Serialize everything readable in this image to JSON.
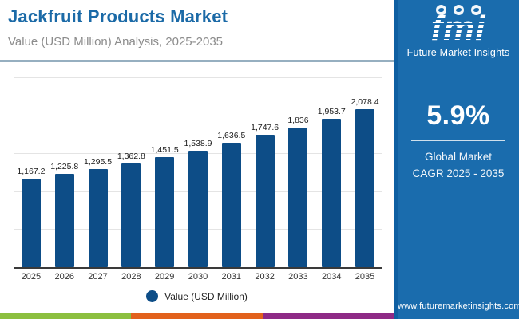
{
  "header": {
    "title": "Jackfruit Products Market",
    "subtitle": "Value (USD Million) Analysis, 2025-2035"
  },
  "chart_data": {
    "type": "bar",
    "title": "Jackfruit Products Market",
    "subtitle": "Value (USD Million) Analysis, 2025-2035",
    "categories": [
      "2025",
      "2026",
      "2027",
      "2028",
      "2029",
      "2030",
      "2031",
      "2032",
      "2033",
      "2034",
      "2035"
    ],
    "values": [
      1167.2,
      1225.8,
      1295.5,
      1362.8,
      1451.5,
      1538.9,
      1636.5,
      1747.6,
      1836,
      1953.7,
      2078.4
    ],
    "value_labels": [
      "1,167.2",
      "1,225.8",
      "1,295.5",
      "1,362.8",
      "1,451.5",
      "1,538.9",
      "1,636.5",
      "1,747.6",
      "1,836",
      "1,953.7",
      "2,078.4"
    ],
    "xlabel": "",
    "ylabel": "",
    "ylim": [
      0,
      2500
    ],
    "gridline_step": 500,
    "grid": true,
    "legend_position": "bottom",
    "bar_color": "#0d4d87"
  },
  "legend": {
    "label": "Value (USD Million)",
    "marker_color": "#0d4d87"
  },
  "sidebar": {
    "logo": {
      "text": "fmi",
      "caption": "Future Market Insights"
    },
    "cagr_value": "5.9%",
    "cagr_label_line1": "Global Market",
    "cagr_label_line2": "CAGR 2025 - 2035",
    "website": "www.futuremarketinsights.com",
    "background_color": "#1a6cad"
  },
  "footer_stripe_colors": [
    "#8cbf3f",
    "#e2611c",
    "#8e2a86"
  ]
}
